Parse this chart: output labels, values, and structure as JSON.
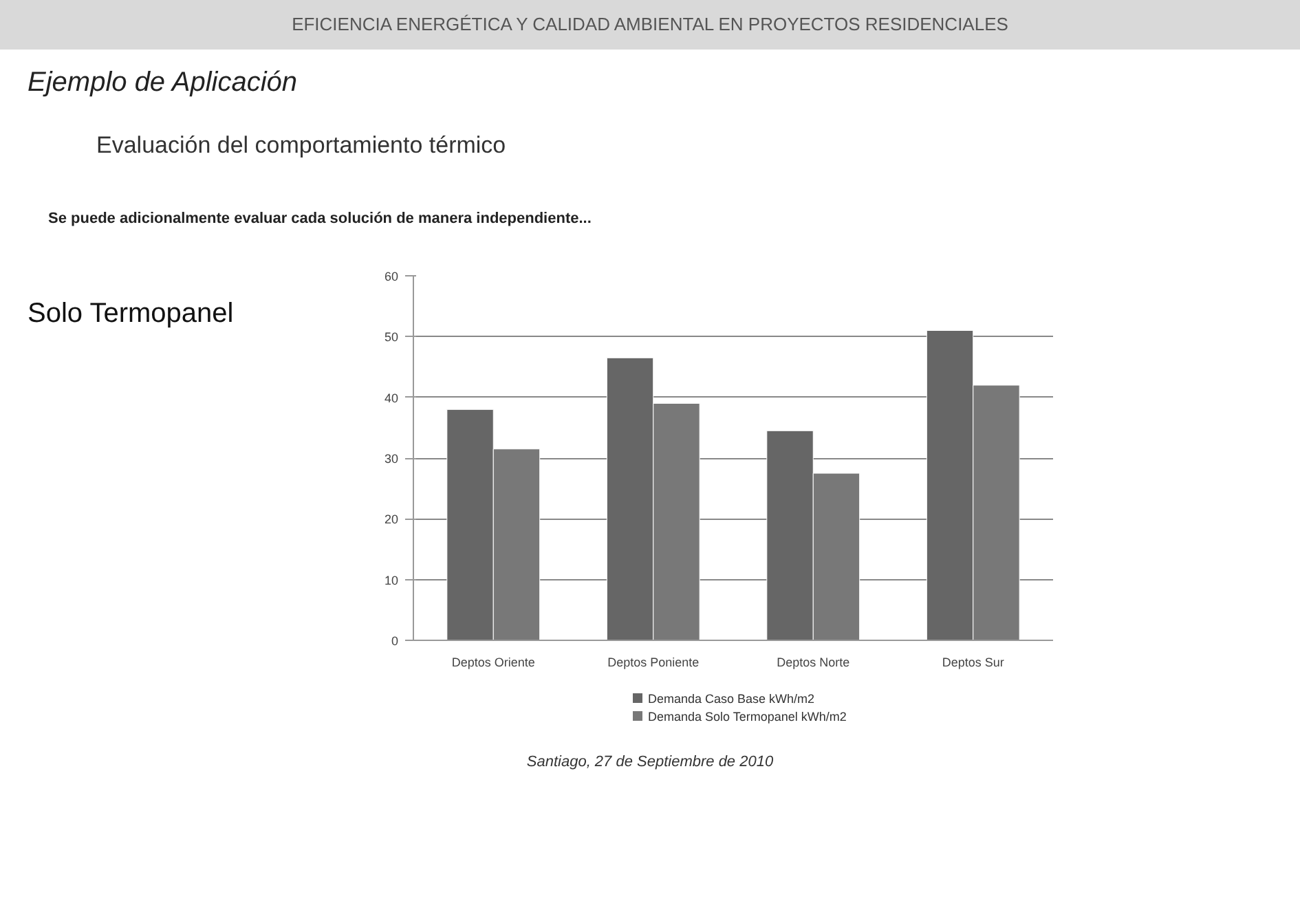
{
  "chart_data": {
    "type": "bar",
    "title": "EFICIENCIA ENERGÉTICA Y CALIDAD AMBIENTAL EN PROYECTOS RESIDENCIALES",
    "subtitle": "Ejemplo de Aplicación",
    "annotations": [
      "Evaluación del comportamiento térmico",
      "Se puede adicionalmente evaluar cada solución de manera independiente...",
      "Solo Termopanel",
      "Santiago, 27 de Septiembre de 2010"
    ],
    "categories": [
      "Deptos Oriente",
      "Deptos Poniente",
      "Deptos Norte",
      "Deptos Sur"
    ],
    "series": [
      {
        "name": "Demanda Caso Base kWh/m2",
        "color": "#666666",
        "values": [
          38,
          46.5,
          34.5,
          51
        ]
      },
      {
        "name": "Demanda Solo Termopanel kWh/m2",
        "color": "#787878",
        "values": [
          31.5,
          39,
          27.5,
          42
        ]
      }
    ],
    "ylim": [
      0,
      60
    ],
    "yticks": [
      0,
      10,
      20,
      30,
      40,
      50,
      60
    ],
    "grid": "y",
    "legend": "bottom"
  }
}
